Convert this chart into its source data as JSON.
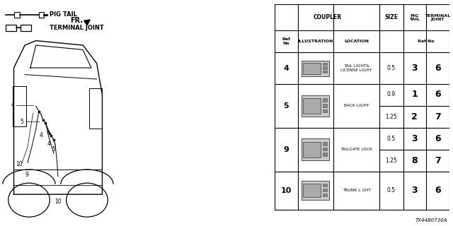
{
  "bg_color": "#ffffff",
  "diagram_number": "TX44B0730A",
  "table": {
    "rows": [
      {
        "ref": "4",
        "location": "TAIL LIGHT&\nLICENSE LIGHT",
        "sub_rows": [
          {
            "size": "0.5",
            "pig_tail": "3",
            "terminal_joint": "6"
          }
        ]
      },
      {
        "ref": "5",
        "location": "BACK LIGHT",
        "sub_rows": [
          {
            "size": "0.9",
            "pig_tail": "1",
            "terminal_joint": "6"
          },
          {
            "size": "1.25",
            "pig_tail": "2",
            "terminal_joint": "7"
          }
        ]
      },
      {
        "ref": "9",
        "location": "TAILGATE LOCK",
        "sub_rows": [
          {
            "size": "0.5",
            "pig_tail": "3",
            "terminal_joint": "6"
          },
          {
            "size": "1.25",
            "pig_tail": "8",
            "terminal_joint": "7"
          }
        ]
      },
      {
        "ref": "10",
        "location": "TRUNK L GHT",
        "sub_rows": [
          {
            "size": "0.5",
            "pig_tail": "3",
            "terminal_joint": "6"
          }
        ]
      }
    ]
  }
}
